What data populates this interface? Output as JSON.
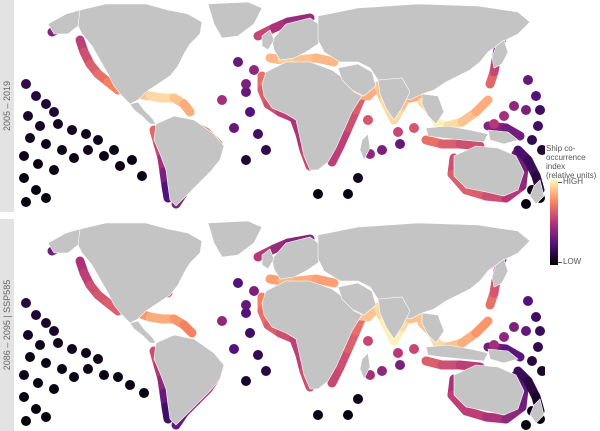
{
  "panels": [
    {
      "label": "2005 – 2019"
    },
    {
      "label": "2086 – 2095 | SSP585"
    }
  ],
  "legend": {
    "title_line1": "Ship co-",
    "title_line2": "occurrence index",
    "title_line3": "(relative units)",
    "high_label": "HIGH",
    "low_label": "LOW",
    "colormap": [
      "#000004",
      "#51127c",
      "#b73779",
      "#fc8961",
      "#fcfdbf"
    ]
  },
  "colors": {
    "land": "#c4c4c4",
    "ocean": "#ffffff"
  }
}
